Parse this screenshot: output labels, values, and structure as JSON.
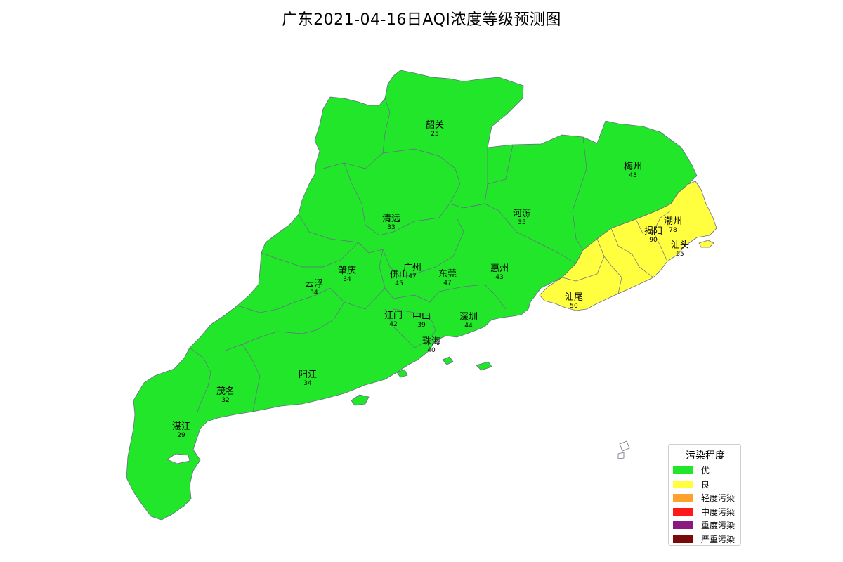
{
  "title": "广东2021-04-16日AQI浓度等级预测图",
  "colors": {
    "excellent": "#22e62a",
    "good": "#ffff40",
    "border": "#6a6a8a"
  },
  "cities": [
    {
      "name": "韶关",
      "aqi": "25",
      "level": "excellent"
    },
    {
      "name": "梅州",
      "aqi": "43",
      "level": "excellent"
    },
    {
      "name": "清远",
      "aqi": "33",
      "level": "excellent"
    },
    {
      "name": "河源",
      "aqi": "35",
      "level": "excellent"
    },
    {
      "name": "潮州",
      "aqi": "78",
      "level": "good"
    },
    {
      "name": "揭阳",
      "aqi": "90",
      "level": "good"
    },
    {
      "name": "汕头",
      "aqi": "65",
      "level": "good"
    },
    {
      "name": "肇庆",
      "aqi": "34",
      "level": "excellent"
    },
    {
      "name": "广州",
      "aqi": "47",
      "level": "excellent"
    },
    {
      "name": "佛山",
      "aqi": "45",
      "level": "excellent"
    },
    {
      "name": "东莞",
      "aqi": "47",
      "level": "excellent"
    },
    {
      "name": "惠州",
      "aqi": "43",
      "level": "excellent"
    },
    {
      "name": "云浮",
      "aqi": "34",
      "level": "excellent"
    },
    {
      "name": "汕尾",
      "aqi": "50",
      "level": "good"
    },
    {
      "name": "江门",
      "aqi": "42",
      "level": "excellent"
    },
    {
      "name": "中山",
      "aqi": "39",
      "level": "excellent"
    },
    {
      "name": "深圳",
      "aqi": "44",
      "level": "excellent"
    },
    {
      "name": "珠海",
      "aqi": "40",
      "level": "excellent"
    },
    {
      "name": "阳江",
      "aqi": "34",
      "level": "excellent"
    },
    {
      "name": "茂名",
      "aqi": "32",
      "level": "excellent"
    },
    {
      "name": "湛江",
      "aqi": "29",
      "level": "excellent"
    }
  ],
  "legend": {
    "title": "污染程度",
    "items": [
      {
        "label": "优",
        "color": "#22e62a"
      },
      {
        "label": "良",
        "color": "#ffff40"
      },
      {
        "label": "轻度污染",
        "color": "#ffa12b"
      },
      {
        "label": "中度污染",
        "color": "#ff1a1a"
      },
      {
        "label": "重度污染",
        "color": "#8a1a80"
      },
      {
        "label": "严重污染",
        "color": "#7a0a0a"
      }
    ]
  }
}
